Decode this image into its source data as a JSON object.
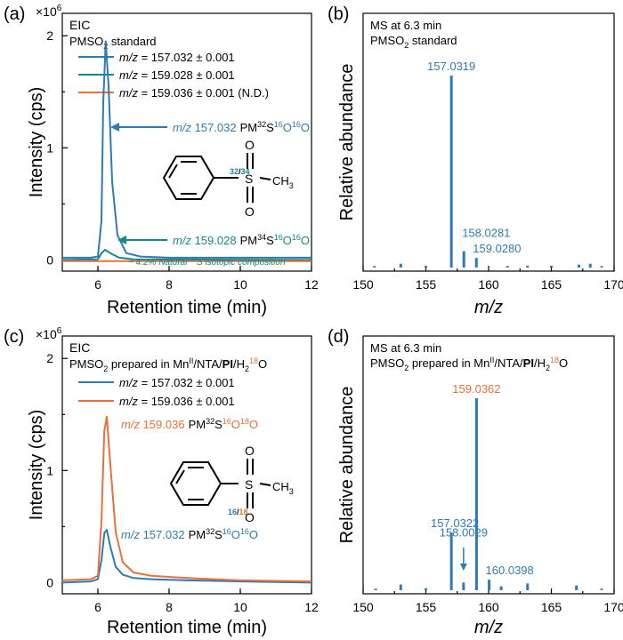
{
  "colors": {
    "blue": "#2f7ab4",
    "teal": "#138a87",
    "orange": "#e8703a"
  },
  "chart_data": [
    {
      "panel": "(a)",
      "type": "line",
      "xlabel": "Retention time (min)",
      "ylabel": "Intensity (cps)",
      "yexp": "×10",
      "yexp_sup": "6",
      "xlim": [
        5,
        12
      ],
      "ylim": [
        -0.1,
        2.2
      ],
      "xticks": [
        "6",
        "8",
        "10",
        "12"
      ],
      "yticks": [
        "0",
        "1",
        "2"
      ],
      "title": "EIC",
      "subtitle": "PMSO",
      "subtitle_sub": "2",
      "subtitle_rest": " standard",
      "series": [
        {
          "name": "m/z = 157.032 ± 0.001",
          "name_italic": "m/z",
          "name_rest": " = 157.032 ± 0.001",
          "color": "#2f7ab4",
          "x": [
            5.0,
            5.8,
            6.0,
            6.1,
            6.15,
            6.22,
            6.3,
            6.4,
            6.55,
            6.8,
            7.2,
            8,
            9,
            10,
            11,
            12
          ],
          "y": [
            0.02,
            0.02,
            0.03,
            0.35,
            1.4,
            1.95,
            1.55,
            0.7,
            0.22,
            0.06,
            0.03,
            0.02,
            0.02,
            0.02,
            0.02,
            0.02
          ]
        },
        {
          "name": "m/z = 159.028 ± 0.001",
          "name_italic": "m/z",
          "name_rest": " = 159.028 ± 0.001",
          "color": "#138a87",
          "x": [
            5.0,
            6.0,
            6.1,
            6.2,
            6.35,
            6.6,
            7.0,
            12
          ],
          "y": [
            0.0,
            0.005,
            0.06,
            0.09,
            0.06,
            0.02,
            0.005,
            0.0
          ]
        },
        {
          "name": "m/z = 159.036 ± 0.001 (N.D.)",
          "name_italic": "m/z",
          "name_rest": " = 159.036 ± 0.001 (N.D.)",
          "color": "#e8703a",
          "x": [
            5,
            12
          ],
          "y": [
            -0.01,
            -0.01
          ]
        }
      ],
      "annotations": [
        {
          "italic": "m/z",
          "value": " 157.032",
          "formula": "PM",
          "iso": "32",
          "s": "S",
          "o1": "16",
          "o2": "16"
        },
        {
          "italic": "m/z",
          "value": " 159.028",
          "formula": "PM",
          "iso": "34",
          "s": "S",
          "o1": "16",
          "o2": "16"
        }
      ],
      "note_pre": "~ 4.2% Natural ",
      "note_sup": "34",
      "note_post": "S isotopic composition",
      "struct_label_a": "32",
      "struct_label_b": "/",
      "struct_label_c": "34"
    },
    {
      "panel": "(b)",
      "type": "bar",
      "xlabel": "m/z",
      "ylabel": "Relative abundance",
      "xlim": [
        150,
        170
      ],
      "xticks": [
        "150",
        "155",
        "160",
        "165",
        "170"
      ],
      "title": "MS at 6.3 min",
      "subtitle": "PMSO",
      "subtitle_sub": "2",
      "subtitle_rest": " standard",
      "peaks": [
        {
          "mz": 157.0319,
          "rel": 1.0,
          "label": "157.0319"
        },
        {
          "mz": 158.0281,
          "rel": 0.085,
          "label": "158.0281"
        },
        {
          "mz": 159.028,
          "rel": 0.05,
          "label": "159.0280"
        },
        {
          "mz": 150.9,
          "rel": 0.008
        },
        {
          "mz": 153.0,
          "rel": 0.02
        },
        {
          "mz": 155.0,
          "rel": 0.008
        },
        {
          "mz": 161.5,
          "rel": 0.008
        },
        {
          "mz": 163.1,
          "rel": 0.01
        },
        {
          "mz": 165.0,
          "rel": 0.008
        },
        {
          "mz": 167.2,
          "rel": 0.015
        },
        {
          "mz": 168.1,
          "rel": 0.02
        },
        {
          "mz": 169.0,
          "rel": 0.008
        }
      ]
    },
    {
      "panel": "(c)",
      "type": "line",
      "xlabel": "Retention time (min)",
      "ylabel": "Intensity (cps)",
      "yexp": "×10",
      "yexp_sup": "6",
      "xlim": [
        5,
        12
      ],
      "ylim": [
        -0.1,
        2.2
      ],
      "xticks": [
        "6",
        "8",
        "10",
        "12"
      ],
      "yticks": [
        "0",
        "1",
        "2"
      ],
      "title": "EIC",
      "subtitle_pre": "PMSO",
      "subtitle_sub": "2",
      "subtitle_mid": " prepared in Mn",
      "subtitle_sup": "II",
      "subtitle_nta": "/NTA/",
      "subtitle_bold": "PI",
      "subtitle_h": "/H",
      "subtitle_h_sub": "2",
      "subtitle_o_sup": "18",
      "subtitle_o": "O",
      "series": [
        {
          "name": "m/z = 157.032 ± 0.001",
          "name_italic": "m/z",
          "name_rest": " = 157.032 ± 0.001",
          "color": "#2f7ab4",
          "x": [
            5.0,
            5.8,
            6.0,
            6.1,
            6.18,
            6.25,
            6.35,
            6.5,
            6.7,
            7.0,
            7.5,
            8.5,
            10,
            12
          ],
          "y": [
            0.0,
            0.01,
            0.03,
            0.2,
            0.44,
            0.47,
            0.32,
            0.14,
            0.07,
            0.04,
            0.03,
            0.02,
            0.01,
            0.0
          ]
        },
        {
          "name": "m/z = 159.036 ± 0.001",
          "name_italic": "m/z",
          "name_rest": " = 159.036 ± 0.001",
          "color": "#e8703a",
          "x": [
            5.0,
            5.8,
            6.0,
            6.1,
            6.18,
            6.25,
            6.35,
            6.5,
            6.7,
            7.0,
            7.5,
            8.5,
            10,
            12
          ],
          "y": [
            0.02,
            0.03,
            0.06,
            0.55,
            1.35,
            1.48,
            1.05,
            0.45,
            0.18,
            0.09,
            0.06,
            0.04,
            0.02,
            0.01
          ]
        }
      ],
      "annotations": [
        {
          "italic": "m/z",
          "value": " 159.036",
          "formula": "PM",
          "iso": "32",
          "s": "S",
          "o1": "16",
          "o2": "18"
        },
        {
          "italic": "m/z",
          "value": " 157.032",
          "formula": "PM",
          "iso": "32",
          "s": "S",
          "o1": "16",
          "o2": "16"
        }
      ],
      "struct_label_a": "16",
      "struct_label_b": "/",
      "struct_label_c": "18"
    },
    {
      "panel": "(d)",
      "type": "bar",
      "xlabel": "m/z",
      "ylabel": "Relative abundance",
      "xlim": [
        150,
        170
      ],
      "xticks": [
        "150",
        "155",
        "160",
        "165",
        "170"
      ],
      "title": "MS at 6.3 min",
      "subtitle_pre": "PMSO",
      "subtitle_sub": "2",
      "subtitle_mid": " prepared in Mn",
      "subtitle_sup": "II",
      "subtitle_nta": "/NTA/",
      "subtitle_bold": "PI",
      "subtitle_h": "/H",
      "subtitle_h_sub": "2",
      "subtitle_o_sup": "18",
      "subtitle_o": "O",
      "peaks": [
        {
          "mz": 159.0362,
          "rel": 1.0,
          "label": "159.0362"
        },
        {
          "mz": 157.0322,
          "rel": 0.3,
          "label": "157.0322"
        },
        {
          "mz": 158.0029,
          "rel": 0.04,
          "label": "158.0029"
        },
        {
          "mz": 160.0398,
          "rel": 0.055,
          "label": "160.0398"
        },
        {
          "mz": 151.0,
          "rel": 0.008
        },
        {
          "mz": 153.0,
          "rel": 0.03
        },
        {
          "mz": 155.0,
          "rel": 0.01
        },
        {
          "mz": 161.0,
          "rel": 0.02
        },
        {
          "mz": 163.1,
          "rel": 0.035
        },
        {
          "mz": 167.0,
          "rel": 0.025
        },
        {
          "mz": 169.0,
          "rel": 0.008
        }
      ]
    }
  ]
}
